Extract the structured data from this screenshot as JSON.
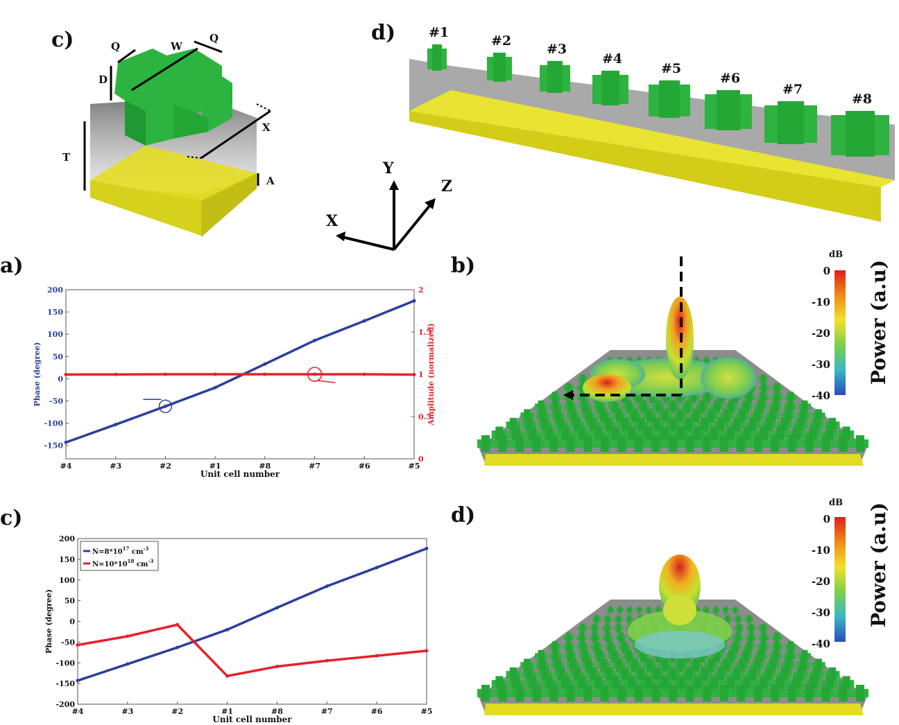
{
  "panel_labels": {
    "top_c": "c)",
    "top_d": "d)",
    "a": "a)",
    "b": "b)",
    "c": "c)",
    "d": "d)"
  },
  "unit_cell_dims": {
    "Q1": "Q",
    "W": "W",
    "Q2": "Q",
    "D": "D",
    "T": "T",
    "X": "X",
    "A": "A"
  },
  "axes3d": {
    "x": "X",
    "y": "Y",
    "z": "Z"
  },
  "cells": [
    "#1",
    "#2",
    "#3",
    "#4",
    "#5",
    "#6",
    "#7",
    "#8"
  ],
  "colorbar": {
    "unit": "dB",
    "title": "Power (a.u)",
    "ticks": [
      "0",
      "-10",
      "-20",
      "-30",
      "-40"
    ]
  },
  "colors": {
    "blue": "#2a3f9c",
    "red": "#e8202a",
    "green": "#2db33f",
    "gold": "#e6e02a"
  },
  "chart_data": [
    {
      "type": "line",
      "panel": "a)",
      "categories": [
        "#4",
        "#3",
        "#2",
        "#1",
        "#8",
        "#7",
        "#6",
        "#5"
      ],
      "xlabel": "Unit cell number",
      "series": [
        {
          "name": "Phase",
          "axis": "left",
          "values": [
            -143,
            -103,
            -62,
            -20,
            33,
            86,
            130,
            175
          ]
        },
        {
          "name": "Amplitude",
          "axis": "right",
          "values": [
            0.997,
            0.998,
            1.0,
            1.0,
            1.0,
            1.0,
            1.0,
            0.996
          ]
        }
      ],
      "ylabel": "Phase (degree)",
      "ylim": [
        -180,
        200
      ],
      "yticks": [
        "200",
        "150",
        "100",
        "50",
        "0",
        "-50",
        "-100",
        "-150"
      ],
      "y2label": "Amplitude (normalized)",
      "y2lim": [
        0,
        2
      ],
      "y2ticks": [
        "2",
        "1.5",
        "1",
        "0.5",
        "0"
      ]
    },
    {
      "type": "line",
      "panel": "c)",
      "categories": [
        "#4",
        "#3",
        "#2",
        "#1",
        "#8",
        "#7",
        "#6",
        "#5"
      ],
      "xlabel": "Unit cell number",
      "ylabel": "Phase (degree)",
      "ylim": [
        -200,
        200
      ],
      "yticks": [
        "200",
        "150",
        "100",
        "50",
        "0",
        "-50",
        "-100",
        "-150",
        "-200"
      ],
      "series": [
        {
          "name": "N=8*10",
          "sup": "17",
          "unit": " cm",
          "unitsup": "-3",
          "values": [
            -143,
            -103,
            -63,
            -20,
            33,
            85,
            130,
            176
          ]
        },
        {
          "name": "N=10*10",
          "sup": "18",
          "unit": " cm",
          "unitsup": "-3",
          "values": [
            -57,
            -36,
            -8,
            -132,
            -109,
            -95,
            -83,
            -71
          ]
        }
      ]
    }
  ]
}
